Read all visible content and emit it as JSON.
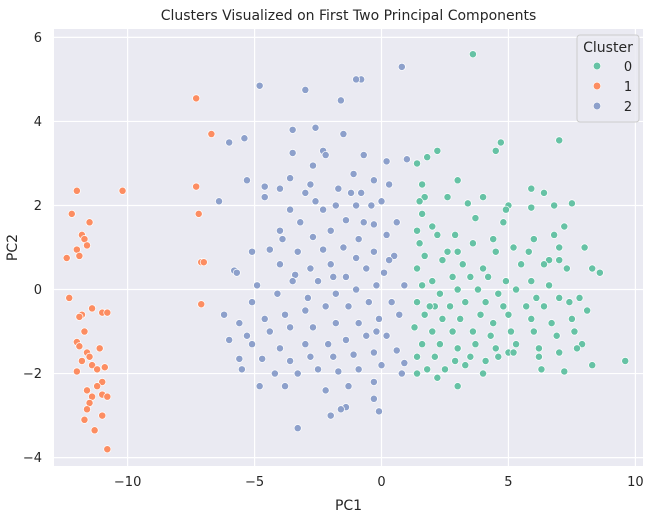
{
  "chart_data": {
    "type": "scatter",
    "title": "Clusters Visualized on First Two Principal Components",
    "xlabel": "PC1",
    "ylabel": "PC2",
    "xlim": [
      -12.9,
      10.3
    ],
    "ylim": [
      -4.2,
      6.2
    ],
    "xticks": [
      -10,
      -5,
      0,
      5,
      10
    ],
    "yticks": [
      -4,
      -2,
      0,
      2,
      4,
      6
    ],
    "grid": true,
    "legend": {
      "title": "Cluster",
      "placement": "top-right",
      "entries": [
        {
          "label": "0",
          "color": "#66c2a5"
        },
        {
          "label": "1",
          "color": "#fc8d62"
        },
        {
          "label": "2",
          "color": "#8da0cb"
        }
      ]
    },
    "series": [
      {
        "name": "0",
        "color": "#66c2a5",
        "points": [
          [
            3.6,
            5.6
          ],
          [
            7.0,
            3.55
          ],
          [
            4.7,
            3.5
          ],
          [
            4.5,
            3.3
          ],
          [
            2.2,
            3.3
          ],
          [
            1.8,
            3.15
          ],
          [
            1.4,
            3.0
          ],
          [
            3.0,
            2.6
          ],
          [
            1.6,
            2.5
          ],
          [
            1.7,
            2.2
          ],
          [
            1.5,
            2.1
          ],
          [
            4.0,
            2.2
          ],
          [
            5.0,
            2.0
          ],
          [
            3.4,
            2.05
          ],
          [
            5.9,
            2.4
          ],
          [
            6.4,
            2.3
          ],
          [
            7.5,
            2.05
          ],
          [
            1.6,
            1.8
          ],
          [
            2.6,
            2.2
          ],
          [
            4.9,
            1.9
          ],
          [
            5.9,
            1.95
          ],
          [
            6.8,
            2.0
          ],
          [
            7.2,
            1.5
          ],
          [
            2.0,
            1.5
          ],
          [
            3.7,
            1.7
          ],
          [
            4.8,
            1.6
          ],
          [
            6.0,
            1.2
          ],
          [
            1.4,
            1.4
          ],
          [
            2.2,
            1.3
          ],
          [
            2.9,
            1.3
          ],
          [
            3.6,
            1.1
          ],
          [
            4.4,
            1.2
          ],
          [
            5.2,
            1.0
          ],
          [
            6.8,
            1.3
          ],
          [
            7.0,
            1.0
          ],
          [
            1.5,
            1.1
          ],
          [
            3.0,
            0.9
          ],
          [
            4.5,
            0.9
          ],
          [
            5.8,
            0.9
          ],
          [
            6.6,
            0.7
          ],
          [
            8.0,
            1.0
          ],
          [
            1.7,
            0.8
          ],
          [
            2.4,
            0.7
          ],
          [
            3.2,
            0.6
          ],
          [
            4.0,
            0.5
          ],
          [
            5.5,
            0.6
          ],
          [
            6.4,
            0.6
          ],
          [
            7.3,
            0.5
          ],
          [
            1.4,
            0.5
          ],
          [
            2.0,
            0.2
          ],
          [
            2.8,
            0.3
          ],
          [
            3.5,
            0.3
          ],
          [
            4.2,
            0.3
          ],
          [
            4.9,
            0.2
          ],
          [
            5.9,
            0.2
          ],
          [
            6.6,
            0.1
          ],
          [
            7.0,
            0.7
          ],
          [
            8.6,
            0.4
          ],
          [
            1.6,
            0.1
          ],
          [
            2.3,
            -0.1
          ],
          [
            3.0,
            0.0
          ],
          [
            3.8,
            0.0
          ],
          [
            4.6,
            -0.1
          ],
          [
            5.3,
            0.0
          ],
          [
            6.1,
            -0.2
          ],
          [
            7.0,
            -0.2
          ],
          [
            7.8,
            -0.2
          ],
          [
            8.3,
            0.5
          ],
          [
            1.4,
            -0.3
          ],
          [
            2.1,
            -0.4
          ],
          [
            2.7,
            -0.4
          ],
          [
            3.3,
            -0.3
          ],
          [
            4.1,
            -0.3
          ],
          [
            4.8,
            -0.4
          ],
          [
            5.7,
            -0.4
          ],
          [
            6.4,
            -0.4
          ],
          [
            7.4,
            -0.3
          ],
          [
            8.1,
            -0.5
          ],
          [
            1.7,
            -0.6
          ],
          [
            2.4,
            -0.7
          ],
          [
            3.1,
            -0.7
          ],
          [
            3.9,
            -0.6
          ],
          [
            4.4,
            -0.8
          ],
          [
            5.0,
            -0.6
          ],
          [
            5.9,
            -0.7
          ],
          [
            6.7,
            -0.8
          ],
          [
            7.5,
            -0.7
          ],
          [
            1.3,
            -0.9
          ],
          [
            2.0,
            -1.0
          ],
          [
            2.8,
            -1.0
          ],
          [
            3.6,
            -1.0
          ],
          [
            4.3,
            -1.1
          ],
          [
            5.1,
            -1.0
          ],
          [
            6.0,
            -1.0
          ],
          [
            6.9,
            -1.1
          ],
          [
            7.6,
            -1.0
          ],
          [
            1.6,
            -1.3
          ],
          [
            2.3,
            -1.3
          ],
          [
            3.0,
            -1.4
          ],
          [
            3.7,
            -1.3
          ],
          [
            4.5,
            -1.4
          ],
          [
            5.3,
            -1.3
          ],
          [
            6.2,
            -1.4
          ],
          [
            7.0,
            -1.5
          ],
          [
            7.9,
            -1.3
          ],
          [
            1.4,
            -1.6
          ],
          [
            2.1,
            -1.6
          ],
          [
            2.9,
            -1.7
          ],
          [
            3.5,
            -1.6
          ],
          [
            4.1,
            -1.7
          ],
          [
            5.0,
            -1.5
          ],
          [
            6.2,
            -1.6
          ],
          [
            7.7,
            -1.4
          ],
          [
            1.8,
            -1.9
          ],
          [
            2.5,
            -1.9
          ],
          [
            3.3,
            -1.8
          ],
          [
            4.0,
            -2.0
          ],
          [
            1.4,
            -2.0
          ],
          [
            2.2,
            -2.1
          ],
          [
            3.0,
            -2.3
          ],
          [
            6.3,
            -1.9
          ],
          [
            7.2,
            -1.95
          ],
          [
            8.3,
            -1.8
          ],
          [
            9.6,
            -1.7
          ],
          [
            5.2,
            -1.5
          ],
          [
            4.6,
            -1.6
          ],
          [
            1.9,
            -0.4
          ],
          [
            2.6,
            0.9
          ]
        ]
      },
      {
        "name": "1",
        "color": "#fc8d62",
        "points": [
          [
            -7.3,
            4.55
          ],
          [
            -6.7,
            3.7
          ],
          [
            -10.2,
            2.35
          ],
          [
            -12.0,
            2.35
          ],
          [
            -7.3,
            2.45
          ],
          [
            -12.2,
            1.8
          ],
          [
            -11.5,
            1.6
          ],
          [
            -7.2,
            1.8
          ],
          [
            -11.8,
            1.3
          ],
          [
            -11.7,
            1.2
          ],
          [
            -11.6,
            1.05
          ],
          [
            -12.0,
            0.95
          ],
          [
            -11.9,
            0.8
          ],
          [
            -12.4,
            0.75
          ],
          [
            -7.1,
            0.65
          ],
          [
            -7.0,
            0.65
          ],
          [
            -12.3,
            -0.2
          ],
          [
            -11.4,
            -0.45
          ],
          [
            -11.0,
            -0.55
          ],
          [
            -10.8,
            -0.55
          ],
          [
            -11.8,
            -0.6
          ],
          [
            -11.9,
            -0.65
          ],
          [
            -7.1,
            -0.35
          ],
          [
            -11.7,
            -1.0
          ],
          [
            -12.0,
            -1.25
          ],
          [
            -11.9,
            -1.35
          ],
          [
            -11.6,
            -1.5
          ],
          [
            -11.1,
            -1.4
          ],
          [
            -11.5,
            -1.6
          ],
          [
            -11.8,
            -1.7
          ],
          [
            -11.4,
            -1.8
          ],
          [
            -11.2,
            -1.9
          ],
          [
            -10.9,
            -1.85
          ],
          [
            -12.0,
            -1.95
          ],
          [
            -11.0,
            -2.2
          ],
          [
            -11.2,
            -2.3
          ],
          [
            -11.6,
            -2.4
          ],
          [
            -11.0,
            -2.5
          ],
          [
            -11.4,
            -2.55
          ],
          [
            -10.8,
            -2.55
          ],
          [
            -11.5,
            -2.7
          ],
          [
            -11.6,
            -2.85
          ],
          [
            -11.0,
            -3.0
          ],
          [
            -11.7,
            -3.1
          ],
          [
            -11.3,
            -3.35
          ],
          [
            -10.8,
            -3.8
          ]
        ]
      },
      {
        "name": "2",
        "color": "#8da0cb",
        "points": [
          [
            0.8,
            5.3
          ],
          [
            -0.8,
            5.0
          ],
          [
            -1.0,
            5.0
          ],
          [
            -4.8,
            4.85
          ],
          [
            -3.0,
            4.75
          ],
          [
            -1.6,
            4.5
          ],
          [
            -2.6,
            3.85
          ],
          [
            -3.5,
            3.8
          ],
          [
            -1.5,
            3.7
          ],
          [
            -6.0,
            3.5
          ],
          [
            -5.4,
            3.6
          ],
          [
            -2.3,
            3.3
          ],
          [
            -2.2,
            3.2
          ],
          [
            -3.5,
            3.25
          ],
          [
            -0.7,
            3.2
          ],
          [
            0.2,
            3.05
          ],
          [
            -2.7,
            2.95
          ],
          [
            -3.6,
            2.65
          ],
          [
            -1.1,
            2.75
          ],
          [
            -0.3,
            2.6
          ],
          [
            -4.0,
            2.4
          ],
          [
            -3.0,
            2.3
          ],
          [
            -1.7,
            2.4
          ],
          [
            -1.2,
            2.3
          ],
          [
            0.3,
            2.5
          ],
          [
            1.0,
            3.1
          ],
          [
            -4.6,
            2.45
          ],
          [
            -5.3,
            2.6
          ],
          [
            -2.8,
            2.5
          ],
          [
            -0.8,
            2.3
          ],
          [
            -1.8,
            2.0
          ],
          [
            -2.6,
            2.1
          ],
          [
            -3.6,
            1.9
          ],
          [
            -4.6,
            2.2
          ],
          [
            -0.4,
            2.0
          ],
          [
            0.0,
            2.1
          ],
          [
            -1.0,
            2.0
          ],
          [
            -6.4,
            2.1
          ],
          [
            -2.3,
            1.9
          ],
          [
            -3.2,
            1.6
          ],
          [
            -4.0,
            1.4
          ],
          [
            -1.4,
            1.65
          ],
          [
            -0.3,
            1.55
          ],
          [
            0.6,
            1.6
          ],
          [
            -2.0,
            1.4
          ],
          [
            -2.7,
            1.25
          ],
          [
            -3.9,
            1.2
          ],
          [
            -0.9,
            1.2
          ],
          [
            0.2,
            1.3
          ],
          [
            -1.5,
            1.0
          ],
          [
            -2.3,
            0.95
          ],
          [
            -3.3,
            0.9
          ],
          [
            -4.4,
            0.95
          ],
          [
            -5.1,
            0.9
          ],
          [
            -0.3,
            0.9
          ],
          [
            0.5,
            0.8
          ],
          [
            -1.0,
            0.75
          ],
          [
            -2.0,
            0.6
          ],
          [
            -2.8,
            0.5
          ],
          [
            -4.0,
            0.6
          ],
          [
            -5.8,
            0.45
          ],
          [
            -0.6,
            0.5
          ],
          [
            0.1,
            0.4
          ],
          [
            -1.4,
            0.3
          ],
          [
            -2.5,
            0.2
          ],
          [
            -3.4,
            0.35
          ],
          [
            -4.9,
            0.1
          ],
          [
            -5.7,
            0.4
          ],
          [
            0.9,
            0.1
          ],
          [
            -0.2,
            0.1
          ],
          [
            -1.0,
            0.0
          ],
          [
            -1.8,
            -0.1
          ],
          [
            -2.9,
            -0.2
          ],
          [
            -4.1,
            -0.1
          ],
          [
            -5.1,
            -0.3
          ],
          [
            0.4,
            -0.3
          ],
          [
            -0.5,
            -0.3
          ],
          [
            -1.3,
            -0.4
          ],
          [
            -2.2,
            -0.4
          ],
          [
            -3.0,
            -0.5
          ],
          [
            -3.8,
            -0.6
          ],
          [
            -4.6,
            -0.7
          ],
          [
            -5.6,
            -0.8
          ],
          [
            -6.2,
            -0.6
          ],
          [
            0.7,
            -0.6
          ],
          [
            -0.1,
            -0.7
          ],
          [
            -0.9,
            -0.8
          ],
          [
            -1.8,
            -0.8
          ],
          [
            -2.7,
            -0.9
          ],
          [
            -3.6,
            -0.9
          ],
          [
            -4.4,
            -1.0
          ],
          [
            -5.3,
            -1.1
          ],
          [
            0.2,
            -1.1
          ],
          [
            -0.6,
            -1.1
          ],
          [
            -1.4,
            -1.2
          ],
          [
            -2.1,
            -1.3
          ],
          [
            -3.0,
            -1.3
          ],
          [
            -4.0,
            -1.4
          ],
          [
            -5.1,
            -1.3
          ],
          [
            -6.0,
            -1.2
          ],
          [
            0.6,
            -1.45
          ],
          [
            -0.3,
            -1.5
          ],
          [
            -1.1,
            -1.55
          ],
          [
            -1.9,
            -1.6
          ],
          [
            -2.8,
            -1.6
          ],
          [
            -3.6,
            -1.7
          ],
          [
            -4.7,
            -1.65
          ],
          [
            -5.6,
            -1.65
          ],
          [
            0.9,
            -1.75
          ],
          [
            0.0,
            -1.8
          ],
          [
            -0.9,
            -1.9
          ],
          [
            -1.7,
            -1.95
          ],
          [
            -2.5,
            -1.9
          ],
          [
            -3.3,
            -2.0
          ],
          [
            -4.2,
            -2.0
          ],
          [
            -5.5,
            -1.9
          ],
          [
            0.8,
            -2.0
          ],
          [
            -0.3,
            -2.2
          ],
          [
            -1.3,
            -2.3
          ],
          [
            -2.2,
            -2.4
          ],
          [
            -3.8,
            -2.3
          ],
          [
            -4.8,
            -2.3
          ],
          [
            -0.3,
            -2.6
          ],
          [
            -1.4,
            -2.8
          ],
          [
            -0.1,
            -2.9
          ],
          [
            -1.6,
            -2.85
          ],
          [
            -2.0,
            -3.0
          ],
          [
            -3.3,
            -3.3
          ],
          [
            -0.2,
            -1.0
          ],
          [
            0.3,
            0.7
          ],
          [
            -0.7,
            1.6
          ],
          [
            -1.9,
            0.3
          ],
          [
            -3.5,
            0.2
          ]
        ]
      }
    ]
  }
}
